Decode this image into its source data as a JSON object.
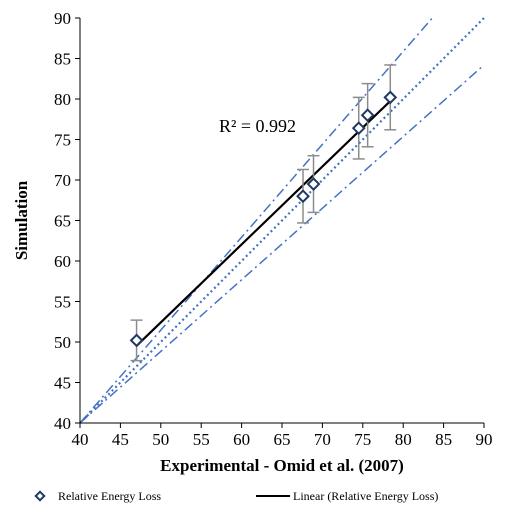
{
  "chart_data": {
    "type": "scatter",
    "title": "",
    "xlabel": "Experimental - Omid et al. (2007)",
    "ylabel": "Simulation",
    "xlim": [
      40,
      90
    ],
    "ylim": [
      40,
      90
    ],
    "x_ticks": [
      40,
      45,
      50,
      55,
      60,
      65,
      70,
      75,
      80,
      85,
      90
    ],
    "y_ticks": [
      40,
      45,
      50,
      55,
      60,
      65,
      70,
      75,
      80,
      85,
      90
    ],
    "grid": false,
    "legend_position": "bottom",
    "series": [
      {
        "name": "Relative Energy Loss",
        "marker": "diamond",
        "color": "#1f3864",
        "points": [
          {
            "x": 47.0,
            "y": 50.2,
            "err": 2.5
          },
          {
            "x": 67.6,
            "y": 68.0,
            "err": 3.3
          },
          {
            "x": 68.9,
            "y": 69.5,
            "err": 3.5
          },
          {
            "x": 74.5,
            "y": 76.4,
            "err": 3.8
          },
          {
            "x": 75.6,
            "y": 78.0,
            "err": 3.9
          },
          {
            "x": 78.4,
            "y": 80.2,
            "err": 4.0
          }
        ]
      }
    ],
    "trendline": {
      "name": "Linear (Relative Energy Loss)",
      "color": "#000000",
      "x_range": [
        47.0,
        78.4
      ],
      "r_squared_label": "R² = 0.992"
    },
    "reference_lines": [
      {
        "kind": "identity",
        "style": "dotted",
        "color": "#4472c4",
        "from": [
          40,
          40
        ],
        "to": [
          90,
          90
        ]
      },
      {
        "kind": "plus_10_percent",
        "style": "dash-dot",
        "color": "#4472c4",
        "from": [
          40,
          40
        ],
        "to": [
          83.6,
          90
        ]
      },
      {
        "kind": "minus_10_percent",
        "style": "dash-dot",
        "color": "#4472c4",
        "from": [
          40,
          40
        ],
        "to": [
          90,
          84.2
        ]
      }
    ],
    "legend": {
      "marker_label": "Relative Energy Loss",
      "line_label": "Linear (Relative Energy Loss)"
    }
  }
}
